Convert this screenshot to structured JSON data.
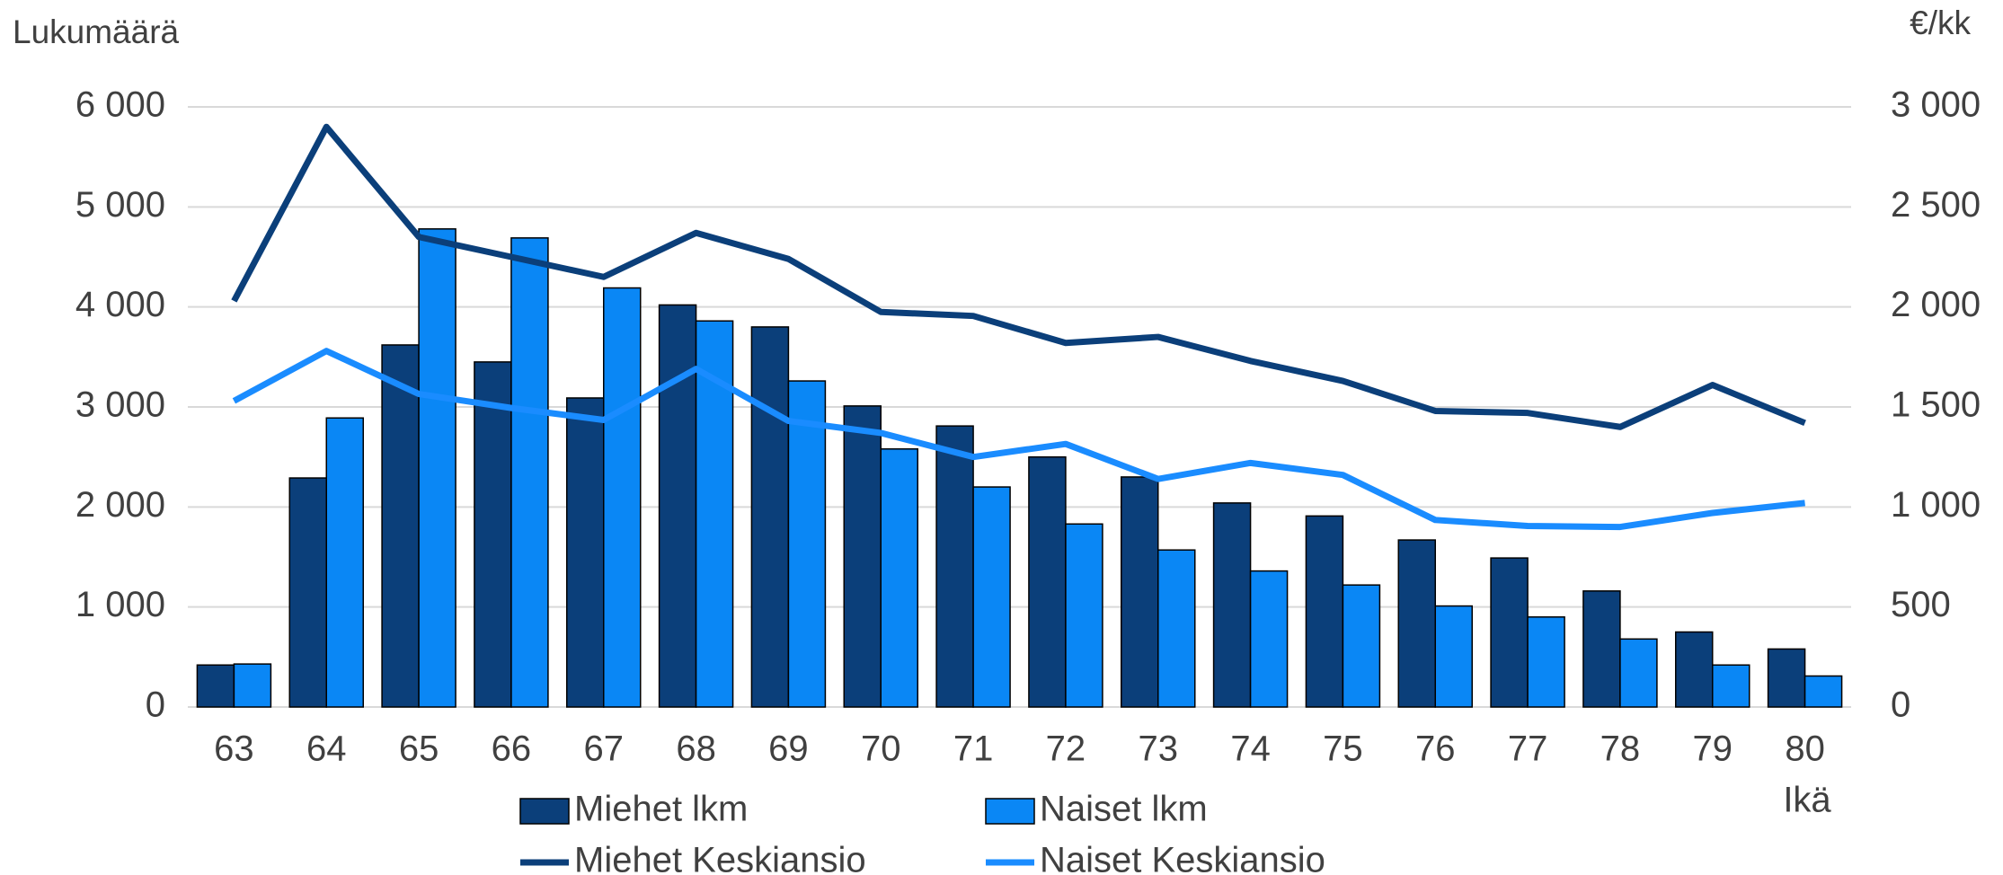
{
  "chart_data": {
    "type": "bar_line",
    "y_axis_label": "Lukumäärä",
    "y2_axis_label": "€/kk",
    "x_axis_label": "Ikä",
    "categories": [
      "63",
      "64",
      "65",
      "66",
      "67",
      "68",
      "69",
      "70",
      "71",
      "72",
      "73",
      "74",
      "75",
      "76",
      "77",
      "78",
      "79",
      "80"
    ],
    "ylim": [
      0,
      6000
    ],
    "yticks": [
      0,
      {
        "value": 1000,
        "label": "1 000"
      },
      {
        "value": 2000,
        "label": "2 000"
      },
      {
        "value": 3000,
        "label": "3 000"
      },
      {
        "value": 4000,
        "label": "4 000"
      },
      {
        "value": 5000,
        "label": "5 000"
      },
      {
        "value": 6000,
        "label": "6 000"
      }
    ],
    "y2lim": [
      0,
      3000
    ],
    "y2ticks": [
      0,
      500,
      {
        "value": 1000,
        "label": "1 000"
      },
      {
        "value": 1500,
        "label": "1 500"
      },
      {
        "value": 2000,
        "label": "2 000"
      },
      {
        "value": 2500,
        "label": "2 500"
      },
      {
        "value": 3000,
        "label": "3 000"
      }
    ],
    "grid": true,
    "series": [
      {
        "name": "Miehet lkm",
        "type": "bar",
        "color": "#0b3f7a",
        "values": [
          420,
          2290,
          3620,
          3450,
          3090,
          4020,
          3800,
          3010,
          2810,
          2500,
          2300,
          2040,
          1910,
          1670,
          1490,
          1160,
          750,
          580
        ]
      },
      {
        "name": "Naiset lkm",
        "type": "bar",
        "color": "#0a87f5",
        "values": [
          430,
          2890,
          4780,
          4690,
          4190,
          3860,
          3260,
          2580,
          2200,
          1830,
          1570,
          1360,
          1220,
          1010,
          900,
          680,
          420,
          310
        ]
      },
      {
        "name": "Miehet Keskiansio",
        "type": "line",
        "axis": "y2",
        "color": "#0b3f7a",
        "values": [
          2030,
          2900,
          2350,
          2250,
          2150,
          2370,
          2240,
          1975,
          1955,
          1820,
          1850,
          1730,
          1630,
          1480,
          1470,
          1400,
          1610,
          1420
        ]
      },
      {
        "name": "Naiset Keskiansio",
        "type": "line",
        "axis": "y2",
        "color": "#1a8cff",
        "values": [
          1530,
          1780,
          1565,
          1495,
          1435,
          1690,
          1430,
          1370,
          1250,
          1315,
          1140,
          1220,
          1160,
          935,
          905,
          900,
          970,
          1020
        ]
      }
    ]
  }
}
